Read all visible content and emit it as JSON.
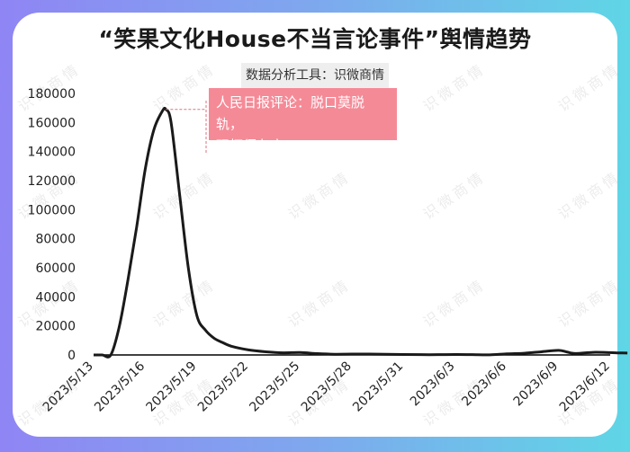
{
  "header": {
    "title": "“笑果文化House不当言论事件”舆情趋势",
    "subtitle": "数据分析工具：识微商情"
  },
  "annotation": {
    "line1": "人民日报评论：脱口莫脱轨，",
    "line2": "玩梗须有度"
  },
  "watermark": "识微商情",
  "colors": {
    "frame_left": "#8f85f4",
    "frame_right": "#5fd6e6",
    "line": "#1a1a1a",
    "annotation_bg": "#f58a97",
    "leader": "#d9737f"
  },
  "chart_data": {
    "type": "line",
    "title": "“笑果文化House不当言论事件”舆情趋势",
    "ylim": [
      0,
      180000
    ],
    "yticks": [
      "0",
      "20000",
      "40000",
      "60000",
      "80000",
      "100000",
      "120000",
      "140000",
      "160000",
      "180000"
    ],
    "xticks": [
      "2023/5/13",
      "2023/5/16",
      "2023/5/19",
      "2023/5/22",
      "2023/5/25",
      "2023/5/28",
      "2023/5/31",
      "2023/6/3",
      "2023/6/6",
      "2023/6/9",
      "2023/6/12"
    ],
    "grid": false,
    "annotation_at": {
      "x": 4.2,
      "y": 169000
    },
    "series": [
      {
        "x": [
          0,
          0.5,
          1.0,
          1.5,
          2.0,
          2.5,
          3.0,
          3.5,
          4.0,
          4.2,
          4.5,
          5.0,
          5.5,
          6.0,
          6.5,
          7.0,
          7.5,
          8.0,
          9.0,
          10.0,
          11.0,
          12.0,
          13.0,
          14.0,
          15.0,
          16.0,
          17.0,
          18.0,
          19.0,
          20.0,
          21.0,
          22.0,
          23.0,
          24.0,
          25.0,
          26.0,
          27.0,
          27.5,
          28.0,
          29.0,
          30.0,
          30.5,
          31.0
        ],
        "y": [
          0,
          0,
          0,
          20000,
          52000,
          88000,
          128000,
          155000,
          168000,
          169000,
          160000,
          110000,
          60000,
          27000,
          17000,
          11500,
          8500,
          6000,
          3500,
          2200,
          1500,
          1700,
          900,
          500,
          600,
          600,
          500,
          300,
          200,
          200,
          300,
          200,
          100,
          800,
          1200,
          2200,
          3200,
          2000,
          1000,
          1800,
          1600,
          1400,
          1300
        ]
      }
    ]
  }
}
